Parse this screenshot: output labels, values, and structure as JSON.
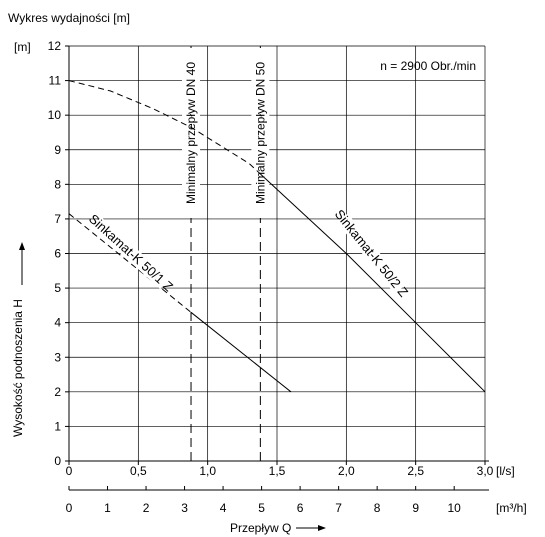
{
  "chart_data": {
    "type": "line",
    "title": "Wykres wydajności [m]",
    "ylabel_unit": "[m]",
    "ylabel": "Wysokość podnoszenia H",
    "xlabel": "Przepływ Q",
    "x_unit_ls": "[l/s]",
    "x_unit_m3h": "[m³/h]",
    "speed_note": "n = 2900 Obr./min",
    "xlim": [
      0,
      3.0
    ],
    "ylim": [
      0,
      12
    ],
    "y_ticks": [
      "0",
      "1",
      "2",
      "3",
      "4",
      "5",
      "6",
      "7",
      "8",
      "9",
      "10",
      "11",
      "12"
    ],
    "x_ticks_ls": [
      {
        "v": 0,
        "label": "0"
      },
      {
        "v": 0.5,
        "label": "0,5"
      },
      {
        "v": 1.0,
        "label": "1,0"
      },
      {
        "v": 1.5,
        "label": "1,5"
      },
      {
        "v": 2.0,
        "label": "2,0"
      },
      {
        "v": 2.5,
        "label": "2,5"
      },
      {
        "v": 3.0,
        "label": "3,0"
      }
    ],
    "x_ticks_m3h": [
      "0",
      "1",
      "2",
      "3",
      "4",
      "5",
      "6",
      "7",
      "8",
      "9",
      "10"
    ],
    "min_flow_lines": [
      {
        "label": "Minimalny przepływ DN 40",
        "x": 0.88
      },
      {
        "label": "Minimalny przepływ DN 50",
        "x": 1.38
      }
    ],
    "series": [
      {
        "name": "Sinkamat-K 50/1 Z",
        "dashed": [
          [
            0,
            7.15
          ],
          [
            0.88,
            4.3
          ]
        ],
        "solid": [
          [
            0.88,
            4.3
          ],
          [
            1.6,
            2.0
          ]
        ]
      },
      {
        "name": "Sinkamat-K 50/2 Z",
        "dashed": [
          [
            0,
            11.0
          ],
          [
            0.3,
            10.7
          ],
          [
            0.6,
            10.2
          ],
          [
            0.88,
            9.65
          ],
          [
            1.1,
            9.1
          ],
          [
            1.3,
            8.6
          ],
          [
            1.38,
            8.3
          ]
        ],
        "solid": [
          [
            1.38,
            8.3
          ],
          [
            2.0,
            6.0
          ],
          [
            2.5,
            4.0
          ],
          [
            3.0,
            2.0
          ]
        ]
      }
    ]
  }
}
